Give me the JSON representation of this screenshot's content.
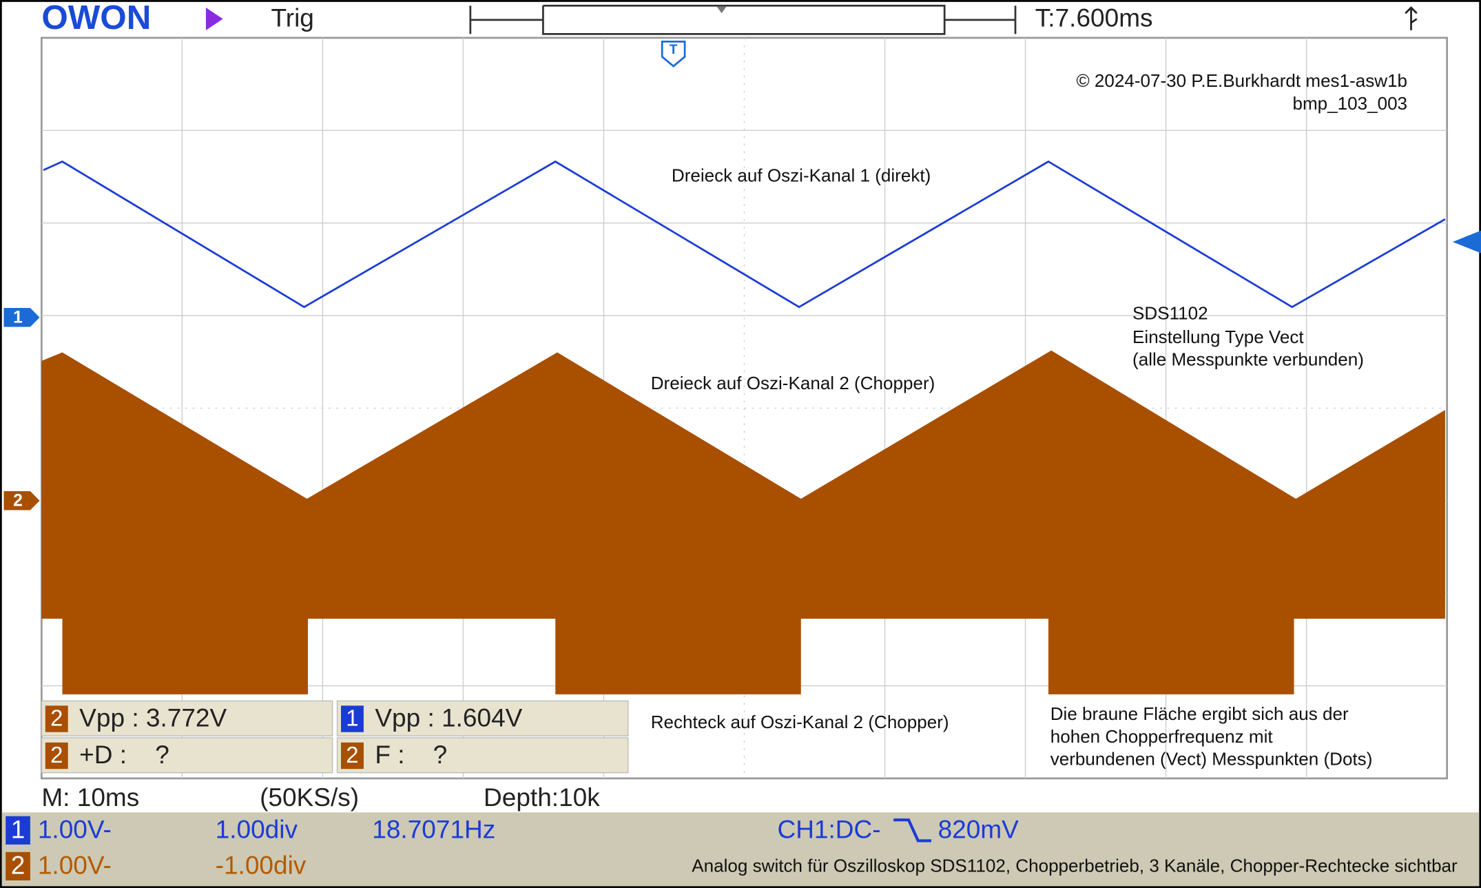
{
  "header": {
    "logo": "OWON",
    "mode": "Trig",
    "time": "T:7.600ms"
  },
  "markers": {
    "trigger": "T",
    "ch1": "1",
    "ch2": "2"
  },
  "annotations": {
    "copyright": "© 2024-07-30 P.E.Burkhardt mes1-asw1b",
    "file": "bmp_103_003",
    "ch1_label": "Dreieck auf Oszi-Kanal 1 (direkt)",
    "settings": [
      "SDS1102",
      "Einstellung Type Vect",
      "(alle Messpunkte verbunden)"
    ],
    "ch2_label": "Dreieck auf Oszi-Kanal 2 (Chopper)",
    "square_label": "Rechteck auf Oszi-Kanal 2 (Chopper)",
    "note": [
      "Die braune Fläche ergibt sich aus der",
      "hohen Chopperfrequenz mit",
      "verbundenen (Vect) Messpunkten (Dots)"
    ]
  },
  "measurements": [
    [
      "2",
      "Vpp : 3.772V"
    ],
    [
      "1",
      "Vpp : 1.604V"
    ],
    [
      "2",
      "+D :    ?"
    ],
    [
      "2",
      "F :    ?"
    ]
  ],
  "status": {
    "timebase": "M: 10ms",
    "rate": "(50KS/s)",
    "depth": "Depth:10k"
  },
  "channels": {
    "ch1": {
      "num": "1",
      "scale": "1.00V-",
      "offset": "1.00div",
      "freq": "18.7071Hz",
      "coupling": "CH1:DC-",
      "level": "820mV"
    },
    "ch2": {
      "num": "2",
      "scale": "1.00V-",
      "offset": "-1.00div"
    }
  },
  "caption": "Analog switch für Oszilloskop SDS1102, Chopperbetrieb, 3 Kanäle, Chopper-Rechtecke sichtbar"
}
